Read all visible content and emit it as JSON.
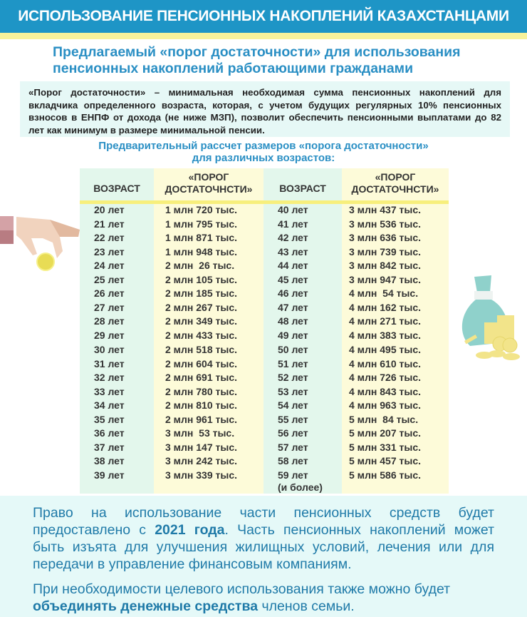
{
  "header": {
    "title": "ИСПОЛЬЗОВАНИЕ ПЕНСИОННЫХ НАКОПЛЕНИЙ КАЗАХСТАНЦАМИ"
  },
  "subtitle": "Предлагаемый «порог достаточности» для использования пенсионных накоплений работающими гражданами",
  "definition": "«Порог достаточности» – минимальная необходимая сумма пенсионных накоплений для вкладчика определенного возраста, которая, с учетом будущих регулярных 10% пенсионных взносов в ЕНПФ от дохода (не ниже МЗП), позволит обеспечить пенсионными выплатами до 82 лет как минимум в размере минимальной пенсии.",
  "table_title": {
    "line1": "Предварительный рассчет размеров «порога достаточности»",
    "line2": "для различных возрастов:"
  },
  "table": {
    "headers": [
      "ВОЗРАСТ",
      "«ПОРОГ\nДОСТАТОЧНСТИ»",
      "ВОЗРАСТ",
      "«ПОРОГ\nДОСТАТОЧНСТИ»"
    ],
    "left": [
      [
        "20 лет",
        "1 млн 720 тыс."
      ],
      [
        "21 лет",
        "1 млн 795 тыс."
      ],
      [
        "22 лет",
        "1 млн 871 тыс."
      ],
      [
        "23 лет",
        "1 млн 948 тыс."
      ],
      [
        "24 лет",
        "2 млн  26 тыс."
      ],
      [
        "25 лет",
        "2 млн 105 тыс."
      ],
      [
        "26 лет",
        "2 млн 185 тыс."
      ],
      [
        "27 лет",
        "2 млн 267 тыс."
      ],
      [
        "28 лет",
        "2 млн 349 тыс."
      ],
      [
        "29 лет",
        "2 млн 433 тыс."
      ],
      [
        "30 лет",
        "2 млн 518 тыс."
      ],
      [
        "31 лет",
        "2 млн 604 тыс."
      ],
      [
        "32 лет",
        "2 млн 691 тыс."
      ],
      [
        "33 лет",
        "2 млн 780 тыс."
      ],
      [
        "34 лет",
        "2 млн 810 тыс."
      ],
      [
        "35 лет",
        "2 млн 961 тыс."
      ],
      [
        "36 лет",
        "3 млн  53 тыс."
      ],
      [
        "37 лет",
        "3 млн 147 тыс."
      ],
      [
        "38 лет",
        "3 млн 242 тыс."
      ],
      [
        "39 лет",
        "3 млн 339 тыс."
      ]
    ],
    "right": [
      [
        "40 лет",
        "3 млн 437 тыс."
      ],
      [
        "41 лет",
        "3 млн 536 тыс."
      ],
      [
        "42 лет",
        "3 млн 636 тыс."
      ],
      [
        "43 лет",
        "3 млн 739 тыс."
      ],
      [
        "44 лет",
        "3 млн 842 тыс."
      ],
      [
        "45 лет",
        "3 млн 947 тыс."
      ],
      [
        "46 лет",
        "4 млн  54 тыс."
      ],
      [
        "47 лет",
        "4 млн 162 тыс."
      ],
      [
        "48 лет",
        "4 млн 271 тыс."
      ],
      [
        "49 лет",
        "4 млн 383 тыс."
      ],
      [
        "50 лет",
        "4 млн 495 тыс."
      ],
      [
        "51 лет",
        "4 млн 610 тыс."
      ],
      [
        "52 лет",
        "4 млн 726 тыс."
      ],
      [
        "53 лет",
        "4 млн 843 тыс."
      ],
      [
        "54 лет",
        "4 млн 963 тыс."
      ],
      [
        "55 лет",
        "5 млн  84 тыс."
      ],
      [
        "56 лет",
        "5 млн 207 тыс."
      ],
      [
        "57 лет",
        "5 млн 331 тыс."
      ],
      [
        "58 лет",
        "5 млн 457 тыс."
      ],
      [
        "59 лет\n(и более)",
        "5 млн 586 тыс."
      ]
    ]
  },
  "bottom": {
    "p1": [
      "Право на использование части пенсионных средств будет предоставлено с ",
      "2021 года",
      ". Часть пенсионных накоплений может быть изъята для улучшения жилищных  условий, лечения или для передачи в управление финансовым компаниям."
    ],
    "p2": [
      "При необходимости целевого использования также можно будет ",
      "объединять денежные средства",
      " членов семьи."
    ]
  },
  "colors": {
    "header": "#1e95c6",
    "accent_text": "#2a8fc4",
    "stripe": "#f7f29a",
    "age_column": "#e3f7ec",
    "value_column": "#fdfbd9",
    "panel": "#e5f9f8"
  },
  "icons": [
    "hand-with-coin-icon",
    "money-bag-with-coins-icon"
  ]
}
